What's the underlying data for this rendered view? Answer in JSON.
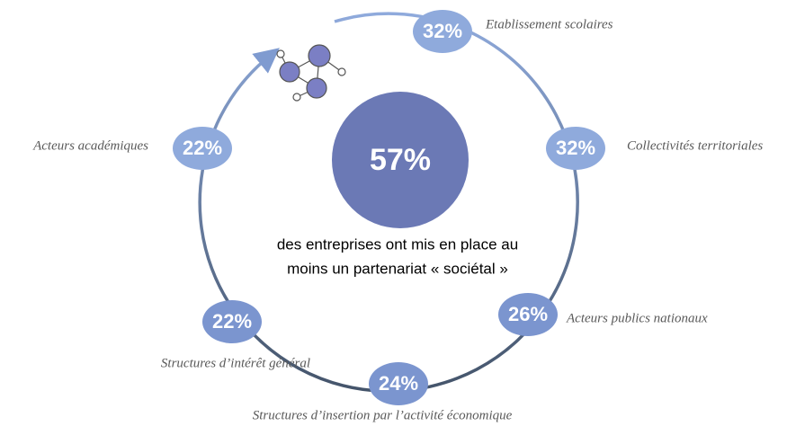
{
  "center": {
    "value": "57%",
    "caption": [
      "des entreprises ont mis en place au",
      "moins un partenariat « sociétal »"
    ]
  },
  "partners": [
    {
      "value": "32%",
      "label": "Etablissement scolaires"
    },
    {
      "value": "32%",
      "label": "Collectivités territoriales"
    },
    {
      "value": "26%",
      "label": "Acteurs publics nationaux"
    },
    {
      "value": "24%",
      "label": "Structures d’insertion par l’activité économique"
    },
    {
      "value": "22%",
      "label": "Structures d’intérêt général"
    },
    {
      "value": "22%",
      "label": "Acteurs académiques"
    }
  ]
}
